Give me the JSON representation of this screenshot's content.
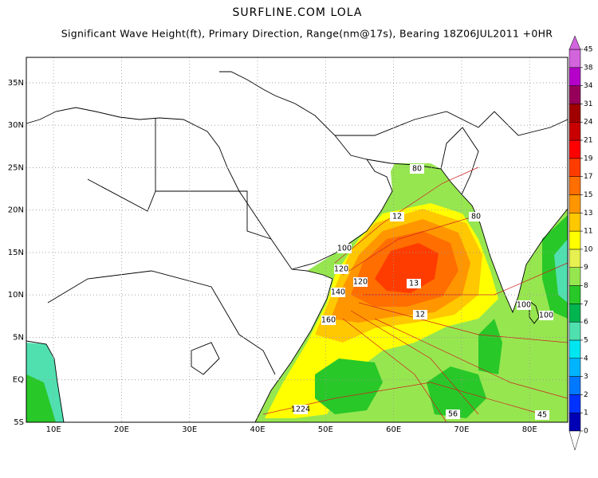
{
  "title": "SURFLINE.COM LOLA",
  "subtitle": "Significant Wave Height(ft), Primary Direction, Range(nm@17s), Bearing 18Z06JUL2011 +0HR",
  "map": {
    "lon_ticks": [
      {
        "value": 10,
        "label": "10E"
      },
      {
        "value": 20,
        "label": "20E"
      },
      {
        "value": 30,
        "label": "30E"
      },
      {
        "value": 40,
        "label": "40E"
      },
      {
        "value": 50,
        "label": "50E"
      },
      {
        "value": 60,
        "label": "60E"
      },
      {
        "value": 70,
        "label": "70E"
      },
      {
        "value": 80,
        "label": "80E"
      }
    ],
    "lat_ticks": [
      {
        "value": 35,
        "label": "35N"
      },
      {
        "value": 30,
        "label": "30N"
      },
      {
        "value": 25,
        "label": "25N"
      },
      {
        "value": 20,
        "label": "20N"
      },
      {
        "value": 15,
        "label": "15N"
      },
      {
        "value": 10,
        "label": "10N"
      },
      {
        "value": 5,
        "label": "5N"
      },
      {
        "value": 0,
        "label": "EQ"
      },
      {
        "value": -5,
        "label": "5S"
      }
    ],
    "contour_labels": [
      "80",
      "12",
      "80",
      "100",
      "120",
      "120",
      "13",
      "140",
      "160",
      "12",
      "100",
      "100",
      "1224",
      "56",
      "45"
    ]
  },
  "colorbar": {
    "levels": [
      0,
      1,
      2,
      3,
      4,
      5,
      6,
      7,
      8,
      9,
      10,
      11,
      13,
      15,
      17,
      19,
      21,
      24,
      31,
      34,
      38,
      45
    ],
    "colors": [
      "#0000b4",
      "#0032ff",
      "#0078ff",
      "#00b4ff",
      "#00e6f0",
      "#50e0b0",
      "#00b450",
      "#28c828",
      "#96e650",
      "#e6f050",
      "#ffff00",
      "#ffc800",
      "#ff9600",
      "#ff6e00",
      "#ff3c00",
      "#ff0000",
      "#c80000",
      "#a00000",
      "#96005a",
      "#b400c8",
      "#d264dc"
    ]
  }
}
